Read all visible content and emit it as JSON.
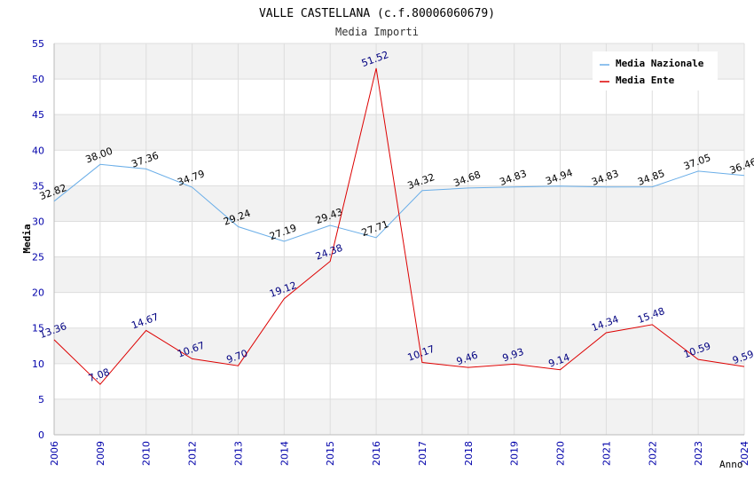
{
  "chart_data": {
    "type": "line",
    "title": "VALLE CASTELLANA (c.f.80006060679)",
    "subtitle": "Media Importi",
    "xlabel": "Anno",
    "ylabel": "Media",
    "ylim": [
      0,
      55
    ],
    "yticks": [
      "0",
      "5",
      "10",
      "15",
      "20",
      "25",
      "30",
      "35",
      "40",
      "45",
      "50",
      "55"
    ],
    "grid": true,
    "legend_position": "top-right",
    "categories": [
      "2006",
      "2009",
      "2010",
      "2012",
      "2013",
      "2014",
      "2015",
      "2016",
      "2017",
      "2018",
      "2019",
      "2020",
      "2021",
      "2022",
      "2023",
      "2024"
    ],
    "series": [
      {
        "name": "Media Nazionale",
        "color": "#6aaee8",
        "label_color": "#000000",
        "values": [
          32.82,
          38.0,
          37.36,
          34.79,
          29.24,
          27.19,
          29.43,
          27.71,
          34.32,
          34.68,
          34.83,
          34.94,
          34.83,
          34.85,
          37.05,
          36.46
        ],
        "labels": [
          "32.82",
          "38.00",
          "37.36",
          "34.79",
          "29.24",
          "27.19",
          "29.43",
          "27.71",
          "34.32",
          "34.68",
          "34.83",
          "34.94",
          "34.83",
          "34.85",
          "37.05",
          "36.46"
        ]
      },
      {
        "name": "Media Ente",
        "color": "#dd0000",
        "label_color": "#000080",
        "values": [
          13.36,
          7.08,
          14.67,
          10.67,
          9.7,
          19.12,
          24.38,
          51.52,
          10.17,
          9.46,
          9.93,
          9.14,
          14.34,
          15.48,
          10.59,
          9.59
        ],
        "labels": [
          "13.36",
          "7.08",
          "14.67",
          "10.67",
          "9.70",
          "19.12",
          "24.38",
          "51.52",
          "10.17",
          "9.46",
          "9.93",
          "9.14",
          "14.34",
          "15.48",
          "10.59",
          "9.59"
        ]
      }
    ],
    "colors": {
      "axis_text": "#0000aa",
      "band": "#f2f2f2",
      "grid": "#dddddd"
    }
  }
}
